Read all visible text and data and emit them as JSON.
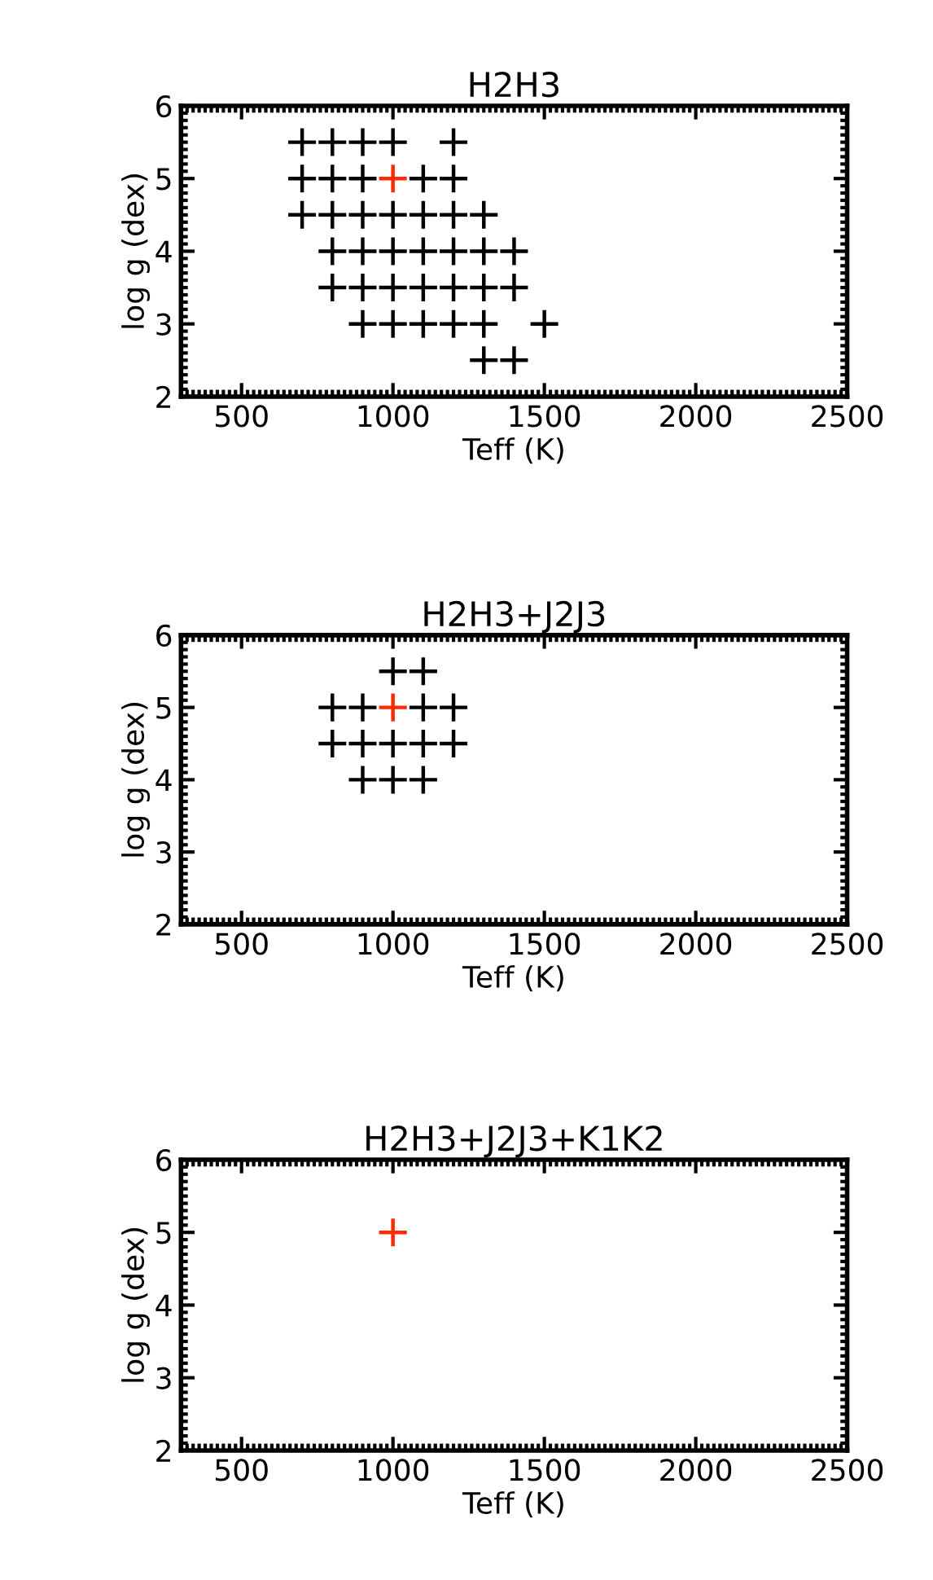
{
  "chart_data": [
    {
      "type": "scatter",
      "title": "H2H3",
      "xlabel": "Teff (K)",
      "ylabel": "log g (dex)",
      "xlim": [
        300,
        2500
      ],
      "xticks": [
        500,
        1000,
        1500,
        2000,
        2500
      ],
      "ylim": [
        2,
        6
      ],
      "yticks": [
        2,
        3,
        4,
        5,
        6
      ],
      "marker": "cross",
      "series": [
        {
          "color": "#000000",
          "x": [
            700,
            800,
            900,
            1000,
            1200,
            700,
            800,
            900,
            1100,
            1200,
            700,
            800,
            900,
            1000,
            1100,
            1200,
            1300,
            800,
            900,
            1000,
            1100,
            1200,
            1300,
            1400,
            800,
            900,
            1000,
            1100,
            1200,
            1300,
            1400,
            900,
            1000,
            1100,
            1200,
            1300,
            1500,
            1300,
            1400
          ],
          "values": [
            5.5,
            5.5,
            5.5,
            5.5,
            5.5,
            5,
            5,
            5,
            5,
            5,
            4.5,
            4.5,
            4.5,
            4.5,
            4.5,
            4.5,
            4.5,
            4,
            4,
            4,
            4,
            4,
            4,
            4,
            3.5,
            3.5,
            3.5,
            3.5,
            3.5,
            3.5,
            3.5,
            3,
            3,
            3,
            3,
            3,
            3,
            2.5,
            2.5
          ]
        },
        {
          "color": "#ff2a00",
          "x": [
            1000
          ],
          "values": [
            5
          ]
        }
      ]
    },
    {
      "type": "scatter",
      "title": "H2H3+J2J3",
      "xlabel": "Teff (K)",
      "ylabel": "log g (dex)",
      "xlim": [
        300,
        2500
      ],
      "xticks": [
        500,
        1000,
        1500,
        2000,
        2500
      ],
      "ylim": [
        2,
        6
      ],
      "yticks": [
        2,
        3,
        4,
        5,
        6
      ],
      "marker": "cross",
      "series": [
        {
          "color": "#000000",
          "x": [
            1000,
            1100,
            800,
            900,
            1100,
            1200,
            800,
            900,
            1000,
            1100,
            1200,
            900,
            1000,
            1100
          ],
          "values": [
            5.5,
            5.5,
            5,
            5,
            5,
            5,
            4.5,
            4.5,
            4.5,
            4.5,
            4.5,
            4,
            4,
            4
          ]
        },
        {
          "color": "#ff2a00",
          "x": [
            1000
          ],
          "values": [
            5
          ]
        }
      ]
    },
    {
      "type": "scatter",
      "title": "H2H3+J2J3+K1K2",
      "xlabel": "Teff (K)",
      "ylabel": "log g (dex)",
      "xlim": [
        300,
        2500
      ],
      "xticks": [
        500,
        1000,
        1500,
        2000,
        2500
      ],
      "ylim": [
        2,
        6
      ],
      "yticks": [
        2,
        3,
        4,
        5,
        6
      ],
      "marker": "cross",
      "series": [
        {
          "color": "#ff2a00",
          "x": [
            1000
          ],
          "values": [
            5
          ]
        }
      ]
    }
  ]
}
